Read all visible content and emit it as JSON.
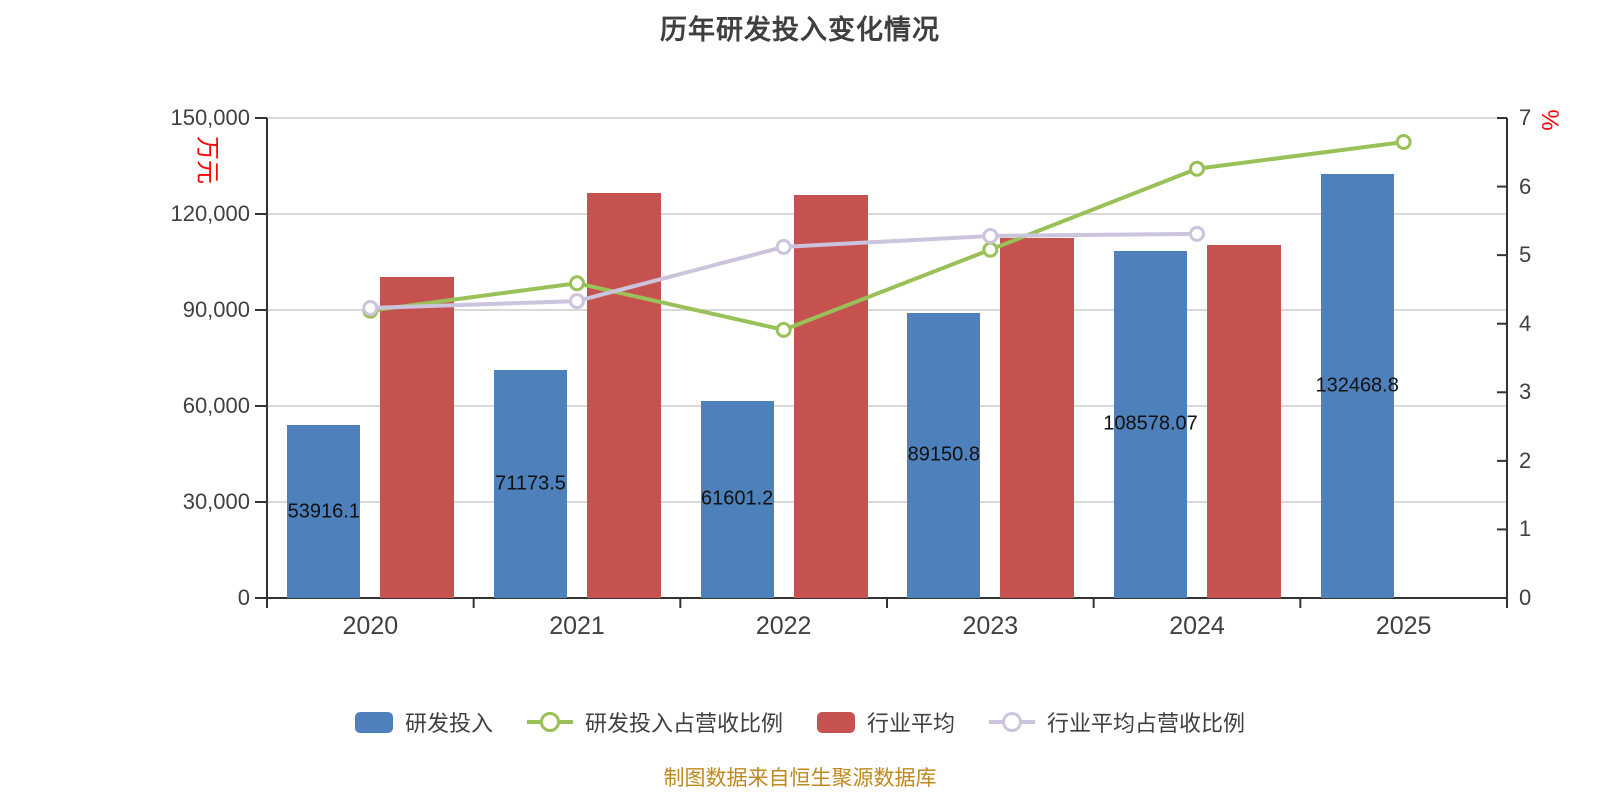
{
  "title": "历年研发投入变化情况",
  "footer": "制图数据来自恒生聚源数据库",
  "colors": {
    "bar_blue": "#4E80BC",
    "bar_red": "#C5524E",
    "line_green": "#9AC058",
    "line_lavender": "#CCC3DC",
    "grid": "#D9D9D9",
    "axis": "#333333",
    "tick_text": "#404040",
    "bar_label": "#111111",
    "unit_red": "#FE0000",
    "footer_orange": "#BE8A1E",
    "title_text": "#3F3F3F"
  },
  "legend": {
    "items": [
      {
        "label": "研发投入",
        "marker": "bar",
        "color": "#4E80BC"
      },
      {
        "label": "研发投入占营收比例",
        "marker": "line-dot",
        "color": "#9AC058"
      },
      {
        "label": "行业平均",
        "marker": "bar",
        "color": "#C5524E"
      },
      {
        "label": "行业平均占营收比例",
        "marker": "line-dot",
        "color": "#CCC3DC"
      }
    ]
  },
  "chart_data": {
    "type": "bar+line",
    "categories": [
      "2020",
      "2021",
      "2022",
      "2023",
      "2024",
      "2025"
    ],
    "series": [
      {
        "name": "研发投入",
        "type": "bar",
        "axis": "left",
        "color": "#4E80BC",
        "values": [
          53916.1,
          71173.5,
          61601.2,
          89150.8,
          108578.07,
          132468.8
        ],
        "labels": [
          "53916.1",
          "71173.5",
          "61601.2",
          "89150.8",
          "108578.07",
          "132468.8"
        ]
      },
      {
        "name": "行业平均",
        "type": "bar",
        "axis": "left",
        "color": "#C5524E",
        "values": [
          100300,
          126600,
          126000,
          112500,
          110400,
          null
        ],
        "labels": [
          null,
          null,
          null,
          null,
          null,
          null
        ]
      },
      {
        "name": "研发投入占营收比例",
        "type": "line",
        "axis": "right",
        "color": "#9AC058",
        "values": [
          4.19,
          4.59,
          3.91,
          5.08,
          6.26,
          6.65
        ]
      },
      {
        "name": "行业平均占营收比例",
        "type": "line",
        "axis": "right",
        "color": "#CCC3DC",
        "values": [
          4.23,
          4.33,
          5.12,
          5.28,
          5.31,
          null
        ]
      }
    ],
    "left_axis": {
      "name": "万元",
      "min": 0,
      "max": 150000,
      "ticks": [
        "150,000",
        "120,000",
        "90,000",
        "60,000",
        "30,000",
        "0"
      ]
    },
    "right_axis": {
      "name": "%",
      "min": 0,
      "max": 7,
      "ticks": [
        "7",
        "6",
        "5",
        "4",
        "3",
        "2",
        "1",
        "0"
      ]
    },
    "grid": true,
    "legend_position": "bottom"
  }
}
